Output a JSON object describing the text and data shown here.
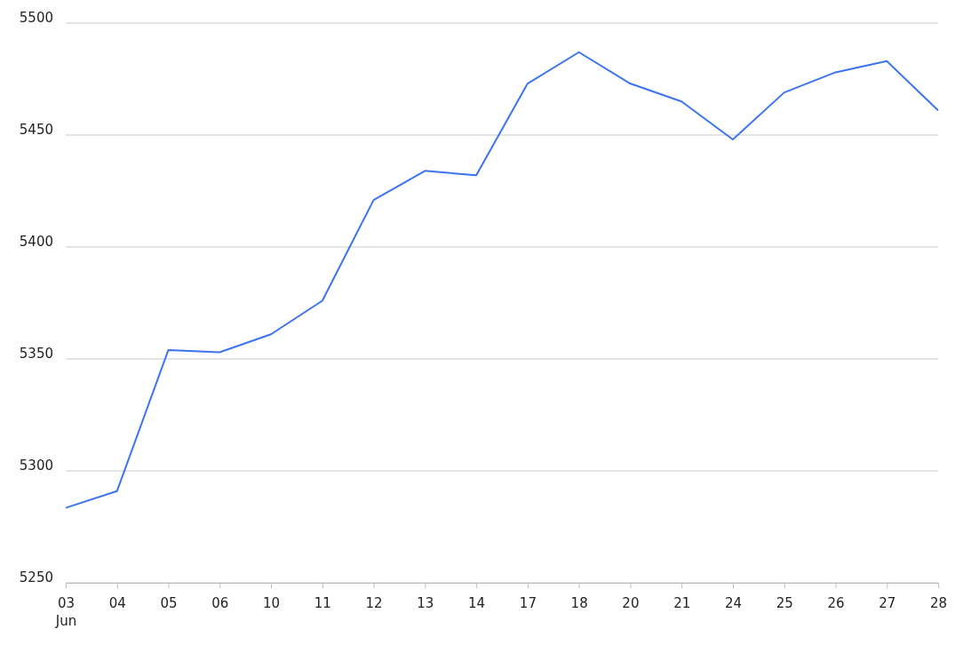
{
  "chart_data": {
    "type": "line",
    "categories": [
      "03\nJun",
      "04",
      "05",
      "06",
      "10",
      "11",
      "12",
      "13",
      "14",
      "17",
      "18",
      "20",
      "21",
      "24",
      "25",
      "26",
      "27",
      "28"
    ],
    "series": [
      {
        "color": "#3b73f0",
        "values": [
          5283.5,
          5291,
          5354,
          5353,
          5361,
          5376,
          5421,
          5434,
          5432,
          5473,
          5487,
          5473,
          5465,
          5448,
          5469,
          5478,
          5483,
          5461
        ]
      }
    ],
    "ylim": [
      5250,
      5500
    ],
    "yticks": [
      5250,
      5300,
      5350,
      5400,
      5450,
      5500
    ],
    "grid": "y",
    "marker": "none",
    "line_style": "solid"
  }
}
